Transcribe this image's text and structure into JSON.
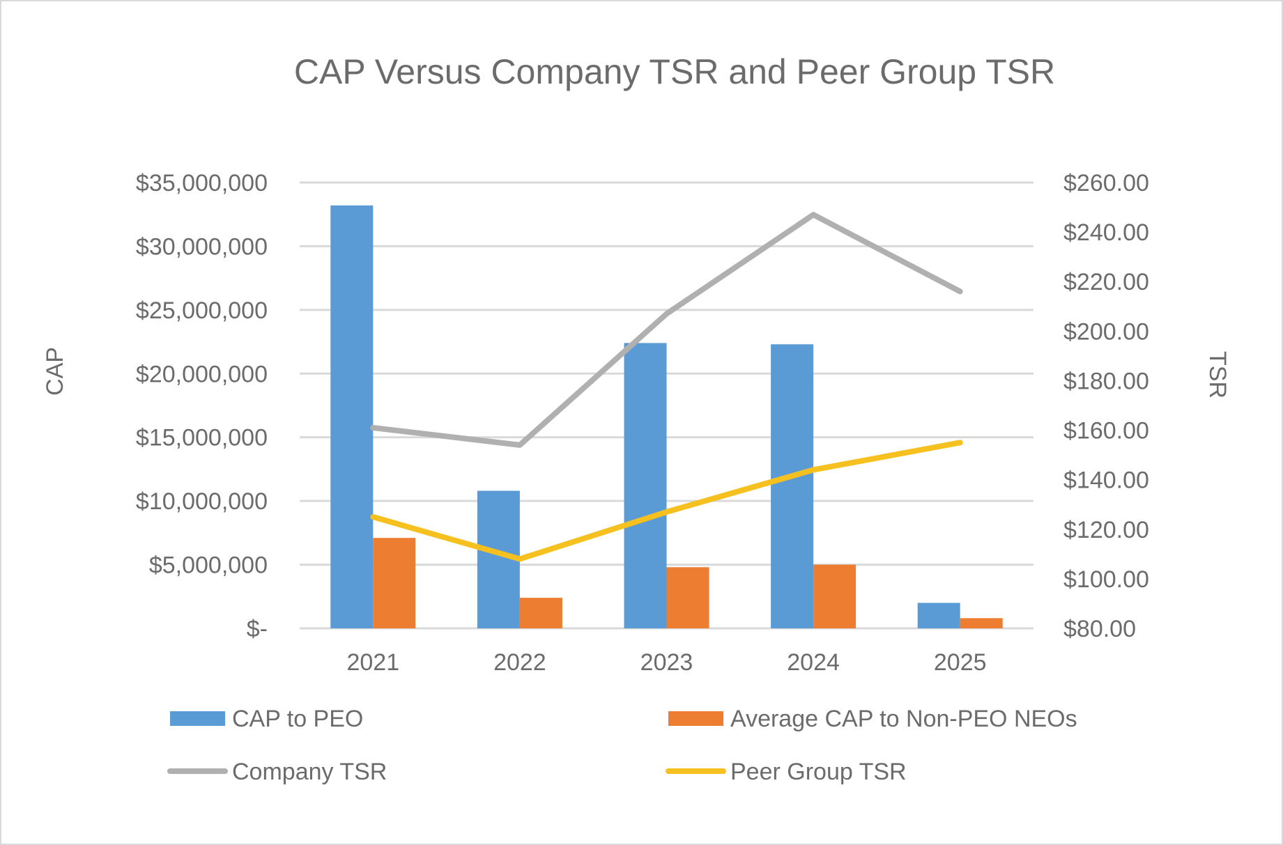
{
  "chart_data": {
    "type": "bar",
    "title": "CAP Versus Company TSR and Peer Group TSR",
    "ylabel": "CAP",
    "y2label": "TSR",
    "categories": [
      "2021",
      "2022",
      "2023",
      "2024",
      "2025"
    ],
    "ylim": [
      0,
      35000000
    ],
    "y2lim": [
      80,
      260
    ],
    "yticks": [
      {
        "value": 0,
        "label": "$-"
      },
      {
        "value": 5000000,
        "label": "$5,000,000"
      },
      {
        "value": 10000000,
        "label": "$10,000,000"
      },
      {
        "value": 15000000,
        "label": "$15,000,000"
      },
      {
        "value": 20000000,
        "label": "$20,000,000"
      },
      {
        "value": 25000000,
        "label": "$25,000,000"
      },
      {
        "value": 30000000,
        "label": "$30,000,000"
      },
      {
        "value": 35000000,
        "label": "$35,000,000"
      }
    ],
    "y2ticks": [
      {
        "value": 80,
        "label": "$80.00"
      },
      {
        "value": 100,
        "label": "$100.00"
      },
      {
        "value": 120,
        "label": "$120.00"
      },
      {
        "value": 140,
        "label": "$140.00"
      },
      {
        "value": 160,
        "label": "$160.00"
      },
      {
        "value": 180,
        "label": "$180.00"
      },
      {
        "value": 200,
        "label": "$200.00"
      },
      {
        "value": 220,
        "label": "$220.00"
      },
      {
        "value": 240,
        "label": "$240.00"
      },
      {
        "value": 260,
        "label": "$260.00"
      }
    ],
    "grid": true,
    "legend_position": "bottom",
    "bar_series": [
      {
        "name": "CAP to PEO",
        "color": "#5b9bd5",
        "values": [
          33200000,
          10800000,
          22400000,
          22300000,
          2000000
        ]
      },
      {
        "name": "Average CAP to Non-PEO NEOs",
        "color": "#ed7d31",
        "values": [
          7100000,
          2400000,
          4800000,
          5000000,
          800000
        ]
      }
    ],
    "line_series": [
      {
        "name": "Company TSR",
        "color": "#b0b0b0",
        "axis": "right",
        "values": [
          161,
          154,
          207,
          247,
          216
        ]
      },
      {
        "name": "Peer Group TSR",
        "color": "#f6c01f",
        "axis": "right",
        "values": [
          125,
          108,
          127,
          144,
          155
        ]
      }
    ]
  }
}
